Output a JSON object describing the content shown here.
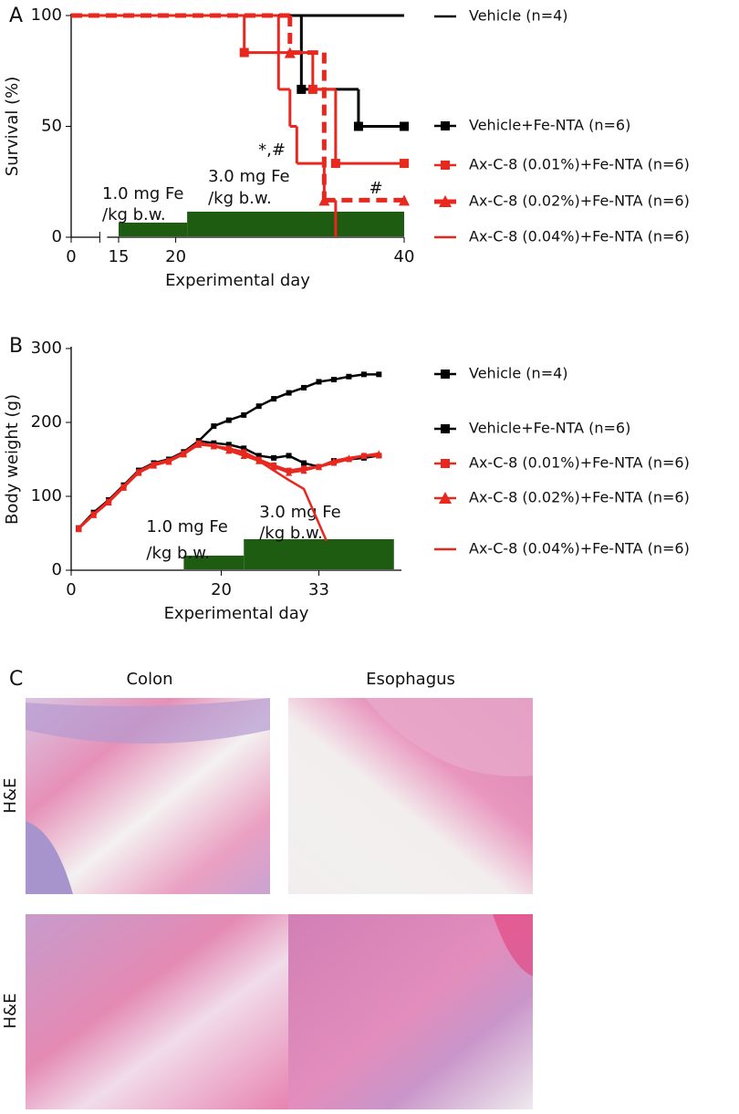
{
  "chart_data": [
    {
      "type": "line",
      "step": true,
      "panel": "A",
      "ylabel": "Survival (%)",
      "xlabel": "Experimental day",
      "xlim": [
        0,
        40
      ],
      "xticks": [
        0,
        15,
        20,
        40
      ],
      "axis_break": [
        0,
        15
      ],
      "ylim": [
        0,
        100
      ],
      "yticks": [
        0,
        50,
        100
      ],
      "series": [
        {
          "name": "Vehicle (n=4)",
          "color": "#000000",
          "line_style": "solid",
          "marker": "none",
          "x": [
            0,
            40
          ],
          "values": [
            100,
            100
          ]
        },
        {
          "name": "Vehicle+Fe-NTA (n=6)",
          "color": "#000000",
          "line_style": "solid",
          "marker": "square",
          "x": [
            0,
            31,
            36,
            40
          ],
          "values": [
            100,
            66.7,
            50,
            50
          ]
        },
        {
          "name": "Ax-C-8 (0.01%)+Fe-NTA (n=6)",
          "color": "#e8281e",
          "line_style": "solid",
          "marker": "square",
          "x": [
            0,
            26,
            32,
            34,
            40
          ],
          "values": [
            100,
            83.3,
            66.7,
            33.3,
            33.3
          ]
        },
        {
          "name": "Ax-C-8 (0.02%)+Fe-NTA (n=6)",
          "color": "#e8281e",
          "line_style": "dashed",
          "marker": "triangle",
          "x": [
            0,
            30,
            33,
            40
          ],
          "values": [
            100,
            83.3,
            16.7,
            16.7
          ]
        },
        {
          "name": "Ax-C-8 (0.04%)+Fe-NTA (n=6)",
          "color": "#e8281e",
          "line_style": "solid",
          "marker": "none",
          "x": [
            0,
            29,
            30,
            30.6,
            33,
            34
          ],
          "values": [
            100,
            66.7,
            50,
            33.3,
            16.7,
            0
          ]
        }
      ],
      "annotations": [
        "*,#",
        "#"
      ],
      "dose_color": "#1e5c12",
      "dose_periods": [
        {
          "label_lines": [
            "1.0 mg Fe",
            "/kg b.w."
          ],
          "start": 15,
          "end": 21
        },
        {
          "label_lines": [
            "3.0 mg Fe",
            "/kg b.w."
          ],
          "start": 21,
          "end": 40
        }
      ]
    },
    {
      "type": "line",
      "step": false,
      "panel": "B",
      "ylabel": "Body weight (g)",
      "xlabel": "Experimental day",
      "xlim": [
        0,
        44
      ],
      "xticks": [
        0,
        20,
        33
      ],
      "ylim": [
        0,
        300
      ],
      "yticks": [
        0,
        100,
        200,
        300
      ],
      "series": [
        {
          "name": "Vehicle (n=4)",
          "color": "#000000",
          "line_style": "solid",
          "marker": "square",
          "x": [
            1,
            3,
            5,
            7,
            9,
            11,
            13,
            15,
            17,
            19,
            21,
            23,
            25,
            27,
            29,
            31,
            33,
            35,
            37,
            39,
            41
          ],
          "values": [
            57,
            78,
            95,
            115,
            135,
            145,
            150,
            160,
            175,
            195,
            203,
            210,
            222,
            232,
            240,
            247,
            255,
            258,
            262,
            265,
            265
          ]
        },
        {
          "name": "Vehicle+Fe-NTA (n=6)",
          "color": "#000000",
          "line_style": "solid",
          "marker": "square",
          "x": [
            1,
            3,
            5,
            7,
            9,
            11,
            13,
            15,
            17,
            19,
            21,
            23,
            25,
            27,
            29,
            31,
            33,
            35,
            37,
            39,
            41
          ],
          "values": [
            57,
            78,
            95,
            115,
            135,
            145,
            150,
            160,
            175,
            172,
            170,
            165,
            155,
            152,
            155,
            145,
            140,
            148,
            150,
            152,
            155
          ]
        },
        {
          "name": "Ax-C-8 (0.01%)+Fe-NTA (n=6)",
          "color": "#e8281e",
          "line_style": "solid",
          "marker": "square",
          "x": [
            1,
            3,
            5,
            7,
            9,
            11,
            13,
            15,
            17,
            19,
            21,
            23,
            25,
            27,
            29,
            31,
            33,
            35,
            37,
            39,
            41
          ],
          "values": [
            57,
            76,
            93,
            113,
            133,
            143,
            148,
            158,
            172,
            168,
            165,
            160,
            150,
            142,
            135,
            138,
            140,
            145,
            150,
            155,
            155
          ]
        },
        {
          "name": "Ax-C-8 (0.02%)+Fe-NTA (n=6)",
          "color": "#e8281e",
          "line_style": "solid",
          "marker": "triangle",
          "x": [
            1,
            3,
            5,
            7,
            9,
            11,
            13,
            15,
            17,
            19,
            21,
            23,
            25,
            27,
            29,
            31,
            33,
            35,
            37,
            39,
            41
          ],
          "values": [
            56,
            75,
            92,
            112,
            132,
            142,
            147,
            157,
            170,
            168,
            162,
            155,
            148,
            140,
            132,
            135,
            140,
            148,
            152,
            155,
            158
          ]
        },
        {
          "name": "Ax-C-8 (0.04%)+Fe-NTA (n=6)",
          "color": "#e8281e",
          "line_style": "solid",
          "marker": "none",
          "x": [
            1,
            3,
            5,
            7,
            9,
            11,
            13,
            15,
            17,
            19,
            21,
            23,
            25,
            27,
            29,
            31,
            34
          ],
          "values": [
            57,
            76,
            94,
            114,
            134,
            144,
            149,
            159,
            173,
            168,
            165,
            158,
            148,
            135,
            122,
            110,
            40
          ]
        }
      ],
      "dose_color": "#1e5c12",
      "dose_periods": [
        {
          "label_lines": [
            "1.0 mg Fe",
            "/kg b.w."
          ],
          "start": 15,
          "end": 23
        },
        {
          "label_lines": [
            "3.0 mg Fe",
            "/kg b.w."
          ],
          "start": 23,
          "end": 43
        }
      ]
    }
  ],
  "panel_c": {
    "label": "C",
    "columns": [
      "Colon",
      "Esophagus"
    ],
    "rows": [
      "H&E",
      "H&E"
    ]
  }
}
